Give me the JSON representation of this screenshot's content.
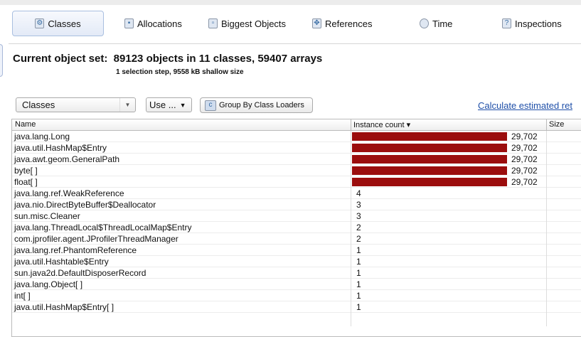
{
  "tabs": [
    {
      "label": "Classes",
      "icon": "classes-icon",
      "active": true
    },
    {
      "label": "Allocations",
      "icon": "allocations-icon"
    },
    {
      "label": "Biggest Objects",
      "icon": "biggest-objects-icon"
    },
    {
      "label": "References",
      "icon": "references-icon"
    },
    {
      "label": "Time",
      "icon": "clock-icon"
    },
    {
      "label": "Inspections",
      "icon": "help-icon"
    }
  ],
  "header": {
    "title": "Current object set:  89123 objects in 11 classes, 59407 arrays",
    "subtitle": "1 selection step, 9558 kB shallow size"
  },
  "toolbar": {
    "view_select": "Classes",
    "use_select": "Use ...",
    "group_button": "Group By Class Loaders",
    "calc_link": "Calculate estimated ret"
  },
  "table": {
    "columns": [
      "Name",
      "Instance count ▾",
      "Size"
    ],
    "bar_color": "#9b0d0d",
    "rows": [
      {
        "name": "java.lang.Long",
        "count": "29,702",
        "fraction": 1
      },
      {
        "name": "java.util.HashMap$Entry",
        "count": "29,702",
        "fraction": 1
      },
      {
        "name": "java.awt.geom.GeneralPath",
        "count": "29,702",
        "fraction": 1
      },
      {
        "name": "byte[ ]",
        "count": "29,702",
        "fraction": 1
      },
      {
        "name": "float[ ]",
        "count": "29,702",
        "fraction": 1
      },
      {
        "name": "java.lang.ref.WeakReference",
        "count": "4",
        "fraction": 0
      },
      {
        "name": "java.nio.DirectByteBuffer$Deallocator",
        "count": "3",
        "fraction": 0
      },
      {
        "name": "sun.misc.Cleaner",
        "count": "3",
        "fraction": 0
      },
      {
        "name": "java.lang.ThreadLocal$ThreadLocalMap$Entry",
        "count": "2",
        "fraction": 0
      },
      {
        "name": "com.jprofiler.agent.JProfilerThreadManager",
        "count": "2",
        "fraction": 0
      },
      {
        "name": "java.lang.ref.PhantomReference",
        "count": "1",
        "fraction": 0
      },
      {
        "name": "java.util.Hashtable$Entry",
        "count": "1",
        "fraction": 0
      },
      {
        "name": "sun.java2d.DefaultDisposerRecord",
        "count": "1",
        "fraction": 0
      },
      {
        "name": "java.lang.Object[ ]",
        "count": "1",
        "fraction": 0
      },
      {
        "name": "int[ ]",
        "count": "1",
        "fraction": 0
      },
      {
        "name": "java.util.HashMap$Entry[ ]",
        "count": "1",
        "fraction": 0
      }
    ]
  }
}
